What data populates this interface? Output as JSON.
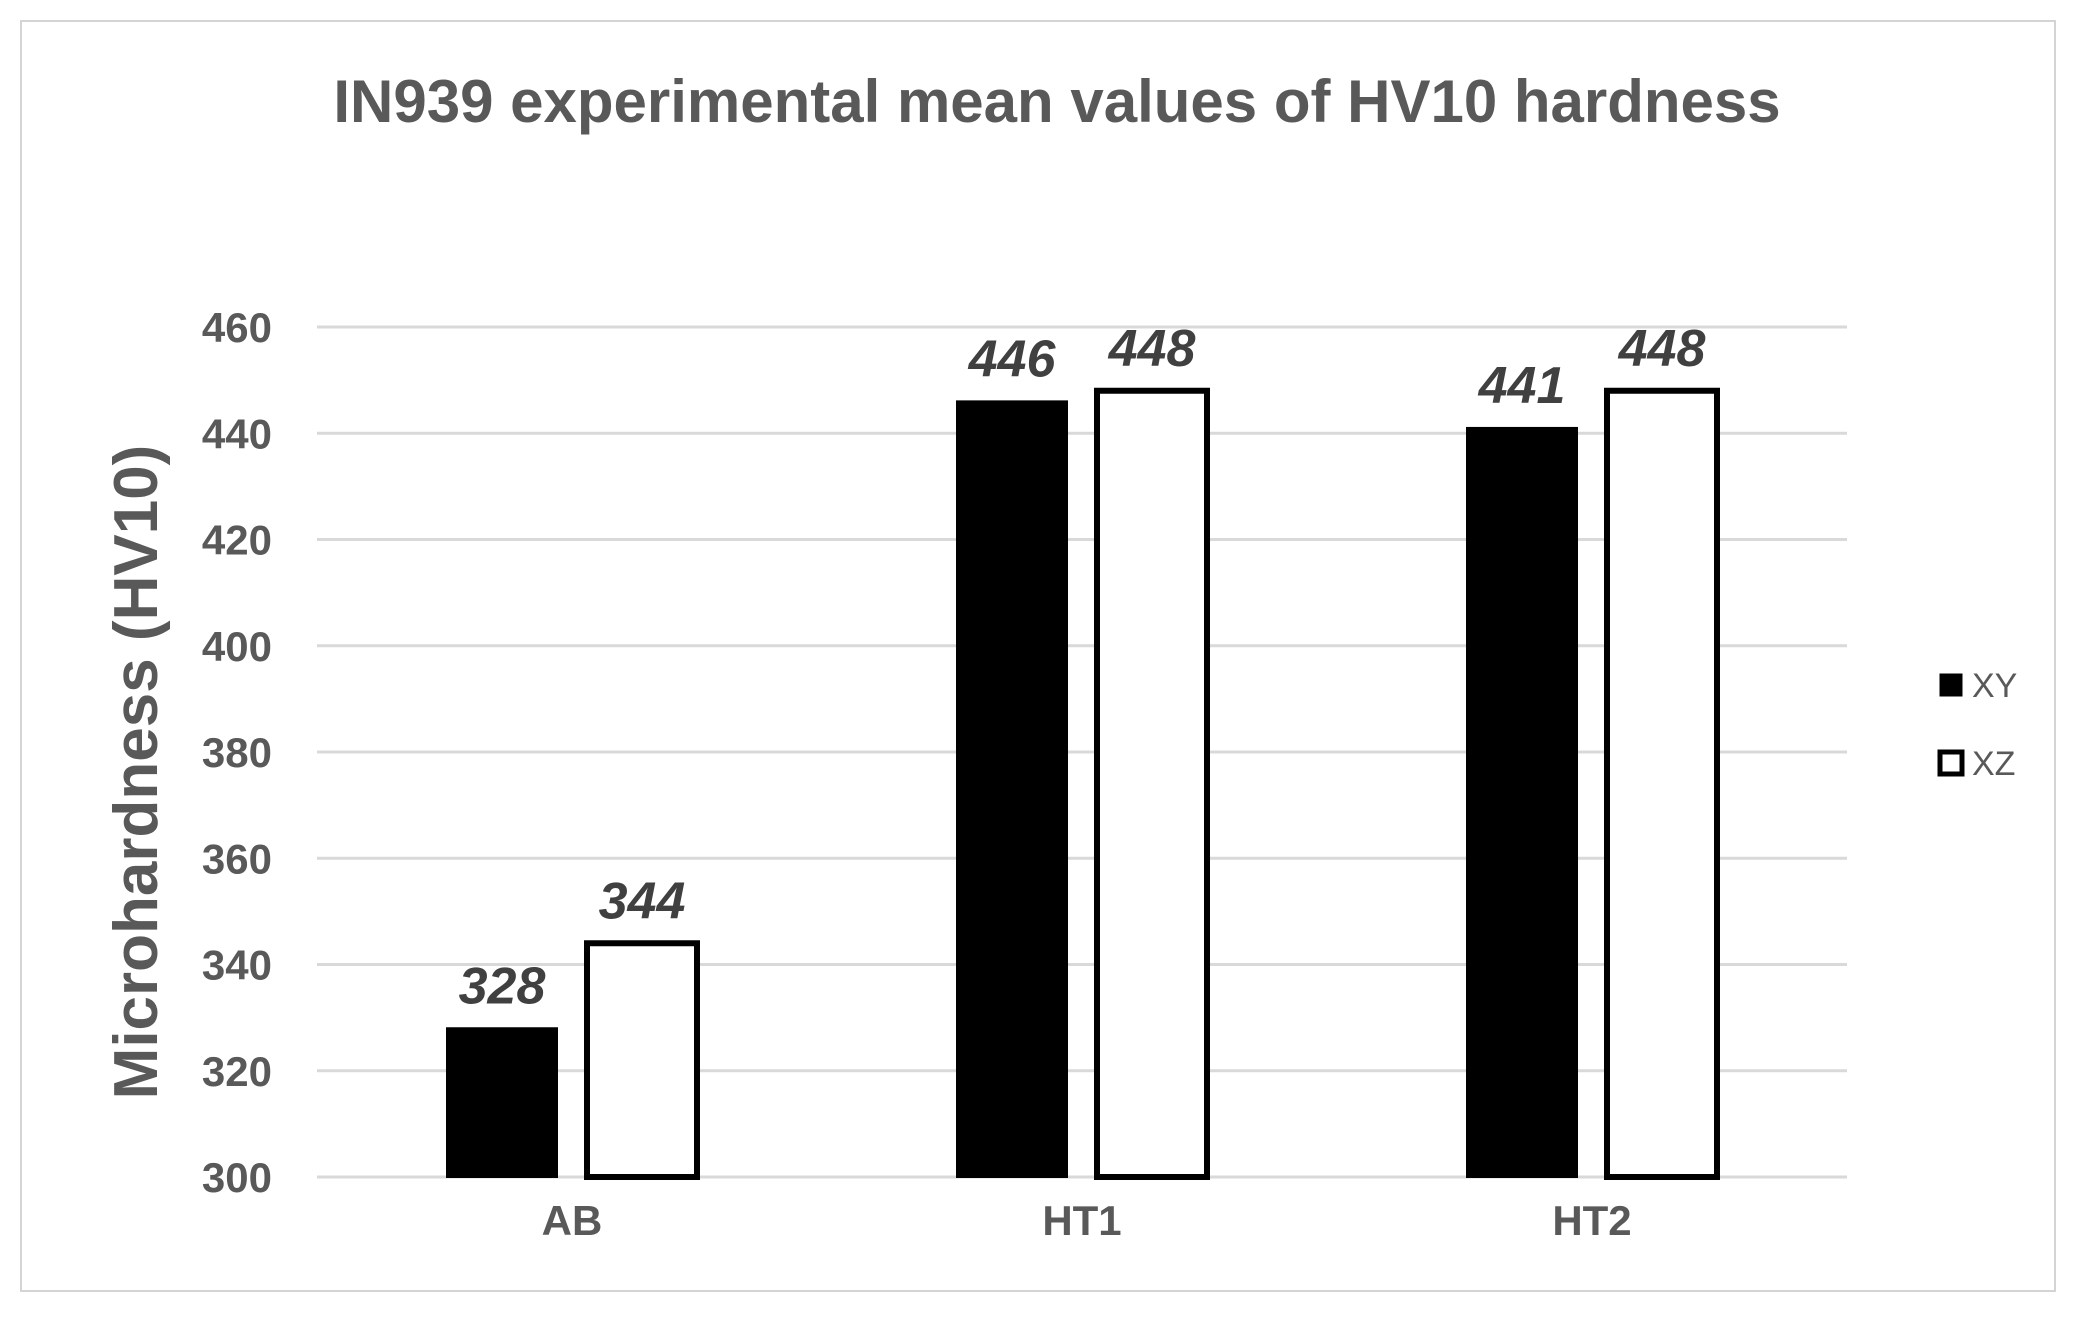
{
  "chart_data": {
    "type": "bar",
    "title": "IN939 experimental mean values of HV10 hardness",
    "xlabel": "",
    "ylabel": "Microhardness (HV10)",
    "categories": [
      "AB",
      "HT1",
      "HT2"
    ],
    "series": [
      {
        "name": "XY",
        "values": [
          328,
          446,
          441
        ],
        "labels": [
          "328",
          "446",
          "441"
        ],
        "fill": "#000000"
      },
      {
        "name": "XZ",
        "values": [
          344,
          448,
          448
        ],
        "labels": [
          "344",
          "448",
          "448"
        ],
        "fill": "#ffffff"
      }
    ],
    "ylim": [
      300,
      460
    ],
    "yticks": [
      300,
      320,
      340,
      360,
      380,
      400,
      420,
      440,
      460
    ],
    "grid": true,
    "legend_position": "right"
  },
  "colors": {
    "text": "#595959",
    "data_label": "#404040",
    "grid": "#d9d9d9",
    "bar_outline": "#000000"
  }
}
